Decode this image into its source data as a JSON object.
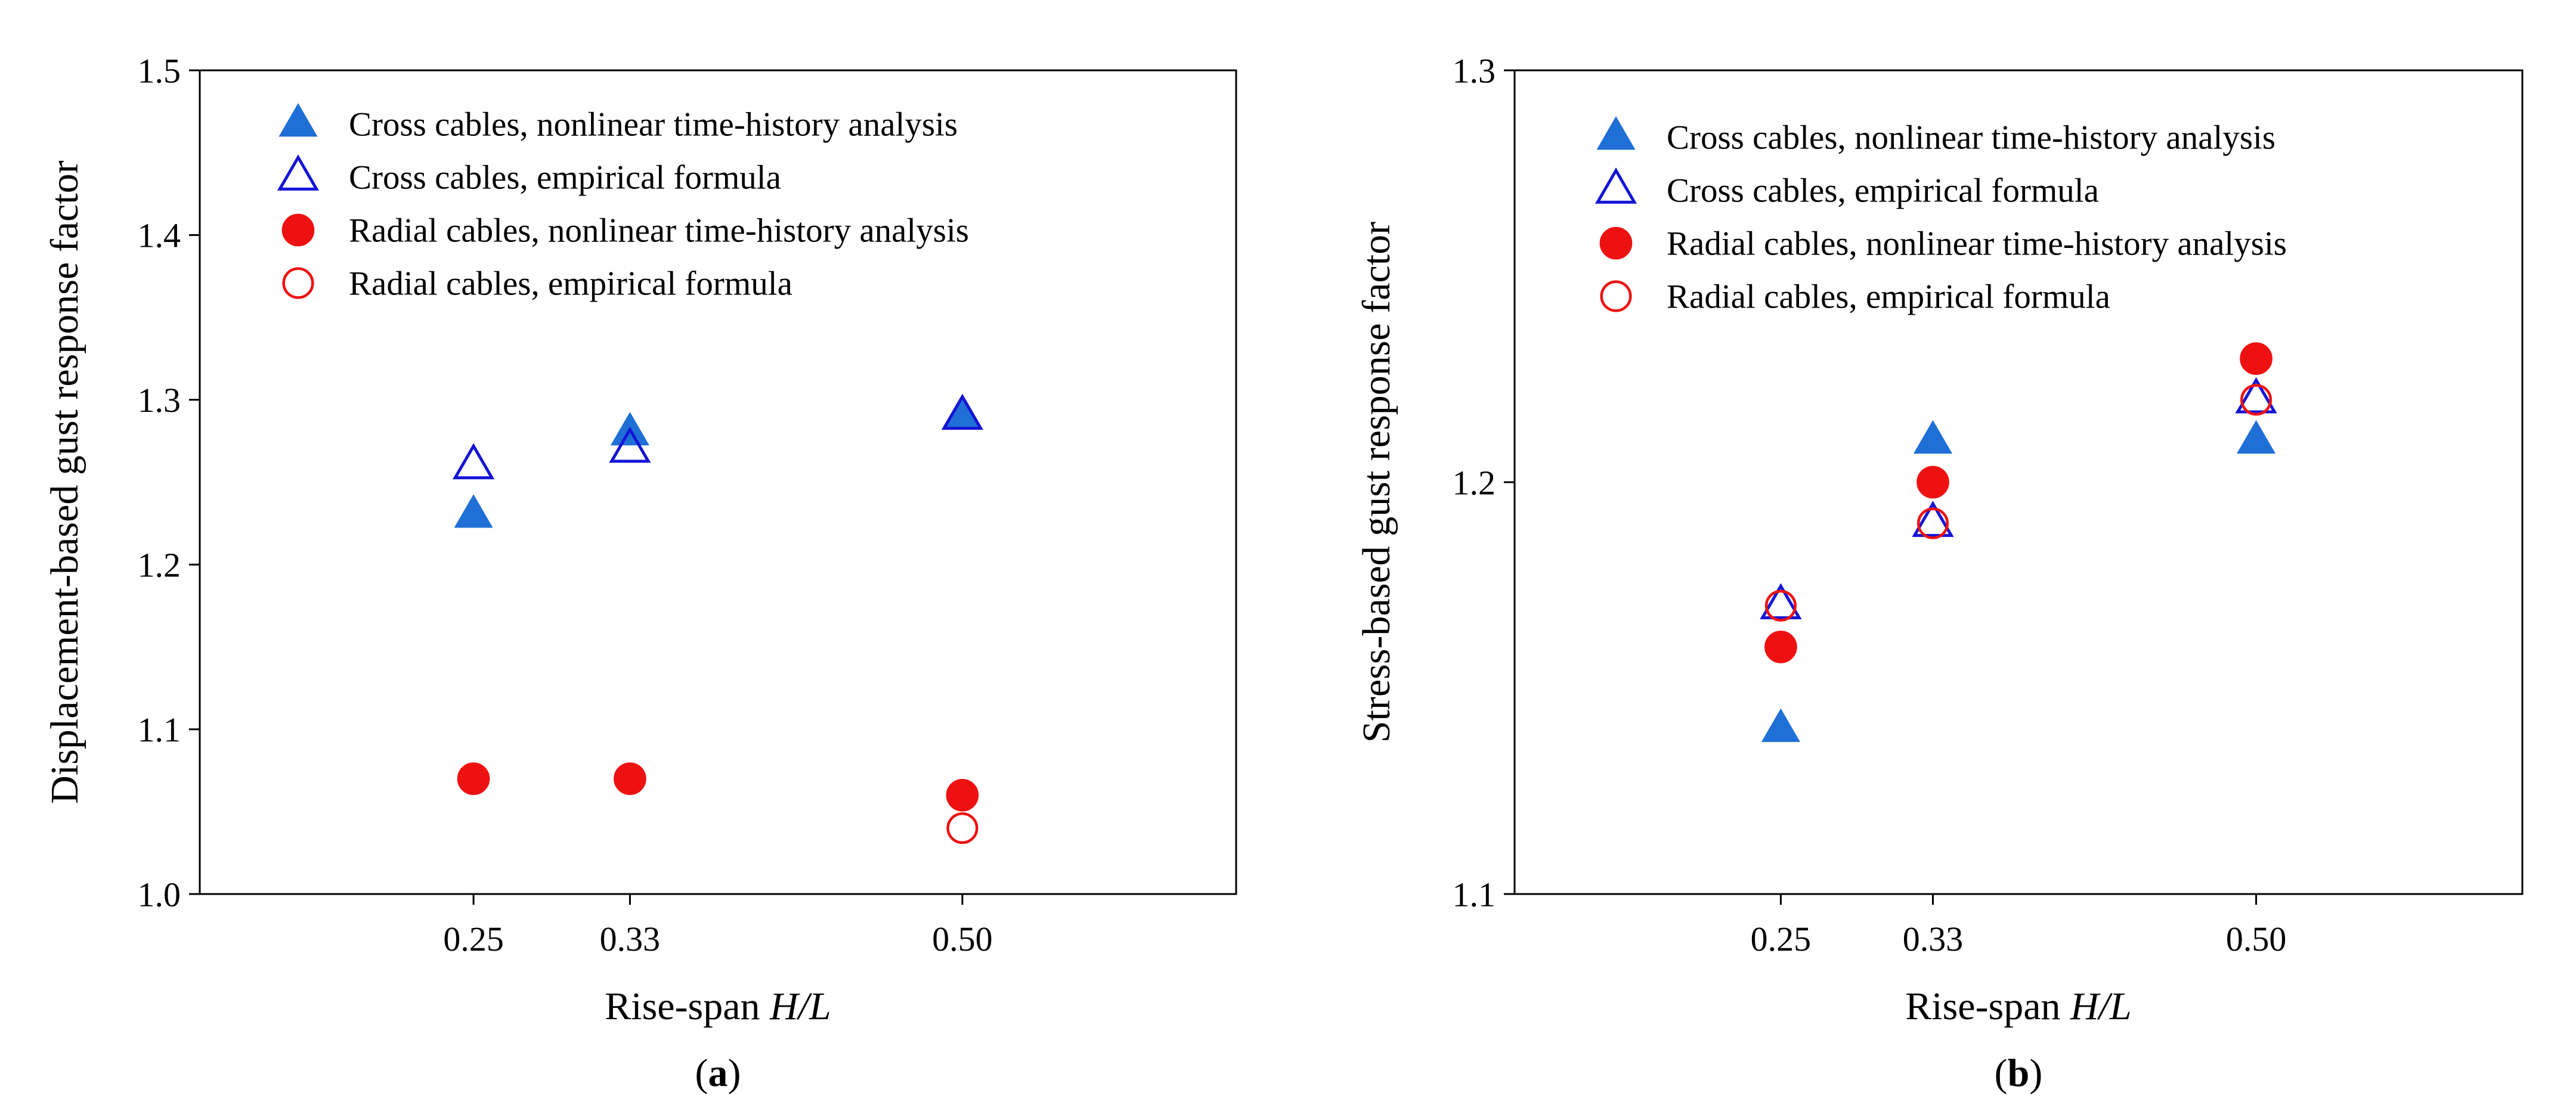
{
  "chart_data": [
    {
      "panel_label": "a",
      "type": "scatter",
      "xlabel_prefix": "Rise-span ",
      "xlabel_var": "H/L",
      "xlabel": "Rise-span H/L",
      "ylabel": "Displacement-based gust response factor",
      "x_tick_labels": [
        "0.25",
        "0.33",
        "0.50"
      ],
      "x_tick_values": [
        0.25,
        0.33,
        0.5
      ],
      "xlim": [
        0.11,
        0.64
      ],
      "ylim": [
        1.0,
        1.5
      ],
      "y_ticks": [
        "1.0",
        "1.1",
        "1.2",
        "1.3",
        "1.4",
        "1.5"
      ],
      "legend_position": "top-left",
      "series": [
        {
          "name": "Cross cables, nonlinear time-history analysis",
          "marker": "triangle",
          "filled": true,
          "color": "#1f6fd6",
          "x": [
            0.25,
            0.33,
            0.5
          ],
          "y": [
            1.23,
            1.28,
            1.29
          ]
        },
        {
          "name": "Cross cables, empirical formula",
          "marker": "triangle",
          "filled": false,
          "color": "#1414d6",
          "x": [
            0.25,
            0.33,
            0.5
          ],
          "y": [
            1.26,
            1.27,
            1.29
          ]
        },
        {
          "name": "Radial cables, nonlinear time-history analysis",
          "marker": "circle",
          "filled": true,
          "color": "#ee1111",
          "x": [
            0.25,
            0.33,
            0.5
          ],
          "y": [
            1.07,
            1.07,
            1.06
          ]
        },
        {
          "name": "Radial cables, empirical formula",
          "marker": "circle",
          "filled": false,
          "color": "#ee1111",
          "x": [
            0.25,
            0.33,
            0.5
          ],
          "y": [
            1.07,
            1.07,
            1.04
          ]
        }
      ]
    },
    {
      "panel_label": "b",
      "type": "scatter",
      "xlabel_prefix": "Rise-span ",
      "xlabel_var": "H/L",
      "xlabel": "Rise-span H/L",
      "ylabel": "Stress-based gust response factor",
      "x_tick_labels": [
        "0.25",
        "0.33",
        "0.50"
      ],
      "x_tick_values": [
        0.25,
        0.33,
        0.5
      ],
      "xlim": [
        0.11,
        0.64
      ],
      "ylim": [
        1.1,
        1.3
      ],
      "y_ticks": [
        "1.1",
        "1.2",
        "1.3"
      ],
      "legend_position": "top-left",
      "series": [
        {
          "name": "Cross cables, nonlinear time-history analysis",
          "marker": "triangle",
          "filled": true,
          "color": "#1f6fd6",
          "x": [
            0.25,
            0.33,
            0.5
          ],
          "y": [
            1.14,
            1.21,
            1.21
          ]
        },
        {
          "name": "Cross cables, empirical formula",
          "marker": "triangle",
          "filled": false,
          "color": "#1414d6",
          "x": [
            0.25,
            0.33,
            0.5
          ],
          "y": [
            1.17,
            1.19,
            1.22
          ]
        },
        {
          "name": "Radial cables, nonlinear time-history analysis",
          "marker": "circle",
          "filled": true,
          "color": "#ee1111",
          "x": [
            0.25,
            0.33,
            0.5
          ],
          "y": [
            1.16,
            1.2,
            1.23
          ]
        },
        {
          "name": "Radial cables, empirical formula",
          "marker": "circle",
          "filled": false,
          "color": "#ee1111",
          "x": [
            0.25,
            0.33,
            0.5
          ],
          "y": [
            1.17,
            1.19,
            1.22
          ]
        }
      ]
    }
  ]
}
